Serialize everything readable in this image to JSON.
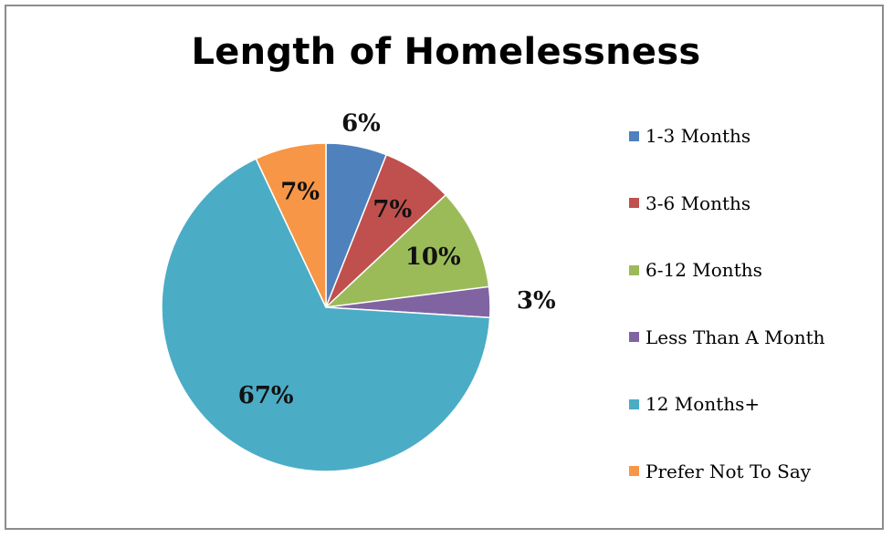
{
  "chart_data": {
    "type": "pie",
    "title": "Length of Homelessness",
    "categories": [
      "1-3 Months",
      "3-6 Months",
      "6-12 Months",
      "Less Than A Month",
      "12 Months+",
      "Prefer Not To Say"
    ],
    "values": [
      6,
      7,
      10,
      3,
      67,
      7
    ],
    "labels": [
      "6%",
      "7%",
      "10%",
      "3%",
      "67%",
      "7%"
    ],
    "colors": [
      "#4f81bd",
      "#c0504d",
      "#9bbb59",
      "#8064a2",
      "#4bacc6",
      "#f79646"
    ],
    "legend_position": "right",
    "start_angle": "12 o'clock",
    "direction": "clockwise"
  }
}
